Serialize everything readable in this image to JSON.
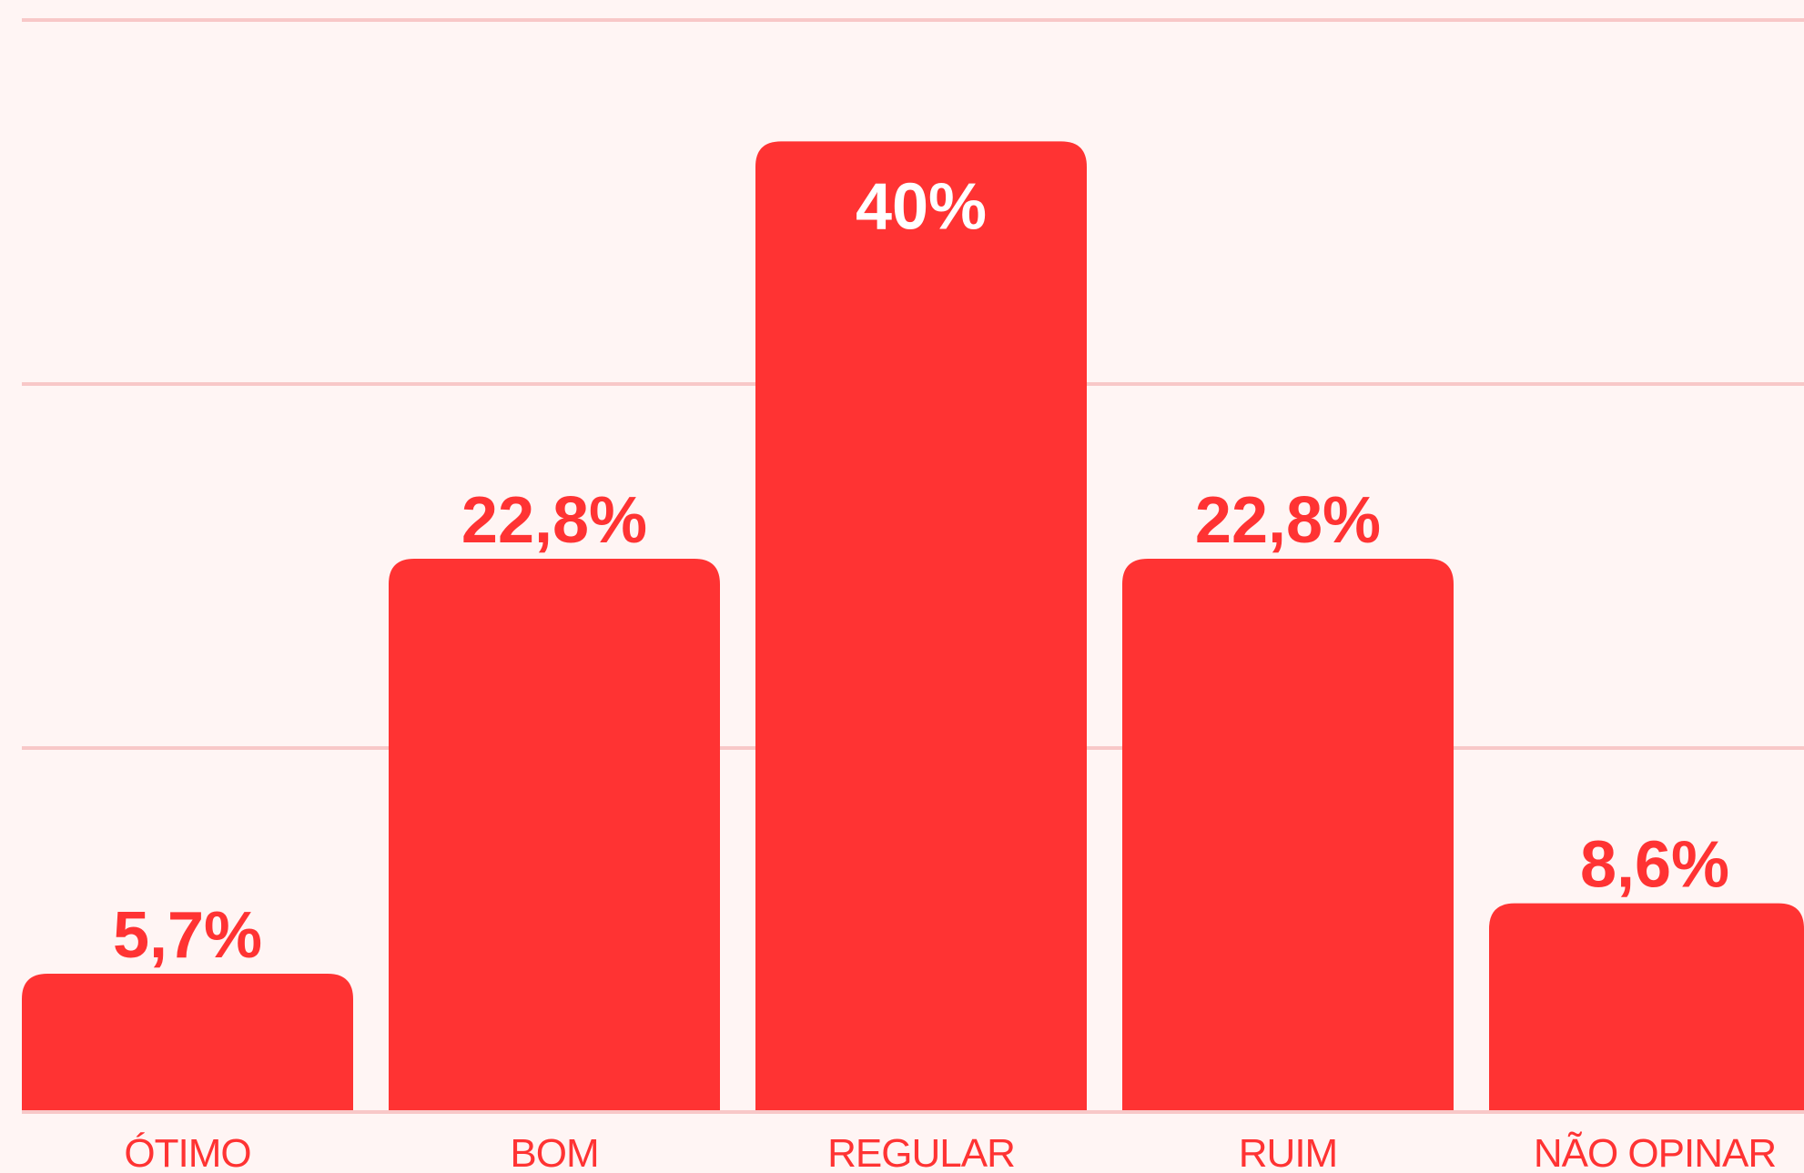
{
  "chart_data": {
    "type": "bar",
    "categories": [
      "ÓTIMO",
      "BOM",
      "REGULAR",
      "RUIM",
      "NÃO OPINAR"
    ],
    "values": [
      5.7,
      22.8,
      40,
      22.8,
      8.6
    ],
    "value_labels": [
      "5,7%",
      "22,8%",
      "40%",
      "22,8%",
      "8,6%"
    ],
    "ylim": [
      0,
      45
    ],
    "gridlines": [
      15,
      30,
      45
    ],
    "grid": true,
    "colors": {
      "background": "#fff5f4",
      "bar": "#ff3333",
      "gridline": "#f8c8c8",
      "label": "#ff3333",
      "label_inside": "#ffffff"
    }
  }
}
